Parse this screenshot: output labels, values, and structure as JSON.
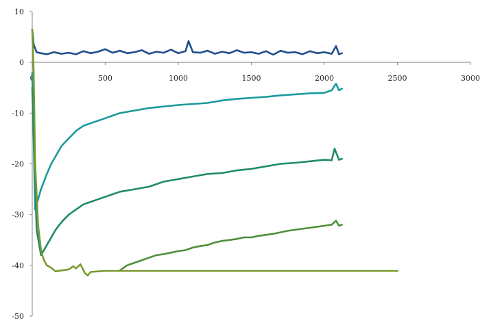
{
  "chart_data": {
    "type": "line",
    "title": "",
    "xlabel": "",
    "ylabel": "",
    "xlim": [
      0,
      3000
    ],
    "ylim": [
      -50,
      10
    ],
    "x_ticks": [
      0,
      500,
      1000,
      1500,
      2000,
      2500,
      3000
    ],
    "y_ticks": [
      10,
      0,
      -10,
      -20,
      -30,
      -40,
      -50
    ],
    "grid": false,
    "legend": "none",
    "series": [
      {
        "color": "#1f4e8c",
        "x": [
          0,
          10,
          30,
          60,
          100,
          150,
          200,
          250,
          300,
          350,
          400,
          450,
          500,
          550,
          600,
          650,
          700,
          750,
          800,
          850,
          900,
          950,
          1000,
          1050,
          1070,
          1100,
          1150,
          1200,
          1250,
          1300,
          1350,
          1400,
          1450,
          1500,
          1550,
          1600,
          1650,
          1700,
          1750,
          1800,
          1850,
          1900,
          1950,
          2000,
          2050,
          2080,
          2100,
          2120
        ],
        "y": [
          6.5,
          3.5,
          2.0,
          1.8,
          1.6,
          2.0,
          1.7,
          1.9,
          1.6,
          2.2,
          1.8,
          2.1,
          2.6,
          1.9,
          2.3,
          1.8,
          2.0,
          2.4,
          1.7,
          2.1,
          1.9,
          2.5,
          1.8,
          2.2,
          4.2,
          2.0,
          1.9,
          2.3,
          1.7,
          2.1,
          1.8,
          2.4,
          1.9,
          2.0,
          1.7,
          2.2,
          1.5,
          2.3,
          1.9,
          2.0,
          1.6,
          2.2,
          1.8,
          2.0,
          1.7,
          3.2,
          1.6,
          1.8
        ]
      },
      {
        "color": "#1a9a9c",
        "x": [
          0,
          20,
          40,
          60,
          80,
          100,
          130,
          160,
          200,
          250,
          300,
          350,
          400,
          450,
          500,
          550,
          600,
          700,
          800,
          900,
          1000,
          1100,
          1200,
          1300,
          1400,
          1500,
          1600,
          1700,
          1800,
          1900,
          2000,
          2050,
          2080,
          2100,
          2120
        ],
        "y": [
          -2,
          -29,
          -27,
          -25,
          -23.5,
          -22,
          -20,
          -18.5,
          -16.5,
          -15,
          -13.5,
          -12.5,
          -12,
          -11.5,
          -11,
          -10.5,
          -10,
          -9.5,
          -9,
          -8.7,
          -8.4,
          -8.2,
          -8,
          -7.5,
          -7.2,
          -7,
          -6.8,
          -6.5,
          -6.3,
          -6.1,
          -6,
          -5.5,
          -4.2,
          -5.5,
          -5.2
        ]
      },
      {
        "color": "#1f8a6e",
        "x": [
          0,
          30,
          60,
          90,
          120,
          160,
          200,
          250,
          300,
          350,
          400,
          450,
          500,
          550,
          600,
          700,
          800,
          900,
          1000,
          1100,
          1200,
          1300,
          1400,
          1500,
          1600,
          1700,
          1800,
          1900,
          2000,
          2050,
          2070,
          2100,
          2120
        ],
        "y": [
          -5,
          -33,
          -38,
          -36.5,
          -35,
          -33,
          -31.5,
          -30,
          -29,
          -28,
          -27.5,
          -27,
          -26.5,
          -26,
          -25.5,
          -25,
          -24.5,
          -23.5,
          -23,
          -22.5,
          -22,
          -21.8,
          -21.3,
          -21,
          -20.5,
          -20,
          -19.8,
          -19.5,
          -19.2,
          -19.3,
          -17,
          -19.2,
          -19
        ]
      },
      {
        "color": "#4e8f3a",
        "x": [
          600,
          650,
          700,
          750,
          800,
          850,
          900,
          950,
          1000,
          1050,
          1100,
          1150,
          1200,
          1250,
          1300,
          1350,
          1400,
          1450,
          1500,
          1550,
          1600,
          1650,
          1700,
          1750,
          1800,
          1850,
          1900,
          1950,
          2000,
          2050,
          2080,
          2100,
          2120
        ],
        "y": [
          -41,
          -40,
          -39.5,
          -39,
          -38.5,
          -38,
          -37.8,
          -37.5,
          -37.2,
          -37,
          -36.5,
          -36.2,
          -36,
          -35.5,
          -35.2,
          -35,
          -34.8,
          -34.5,
          -34.5,
          -34.2,
          -34,
          -33.8,
          -33.5,
          -33.2,
          -33,
          -32.8,
          -32.6,
          -32.4,
          -32.2,
          -32,
          -31.2,
          -32.2,
          -32
        ]
      },
      {
        "color": "#7a9a2e",
        "x": [
          0,
          10,
          20,
          40,
          60,
          80,
          100,
          130,
          160,
          200,
          250,
          280,
          300,
          330,
          360,
          380,
          400,
          450,
          500,
          600,
          800,
          1000,
          1500,
          2000,
          2500
        ],
        "y": [
          6.5,
          -2,
          -20,
          -32,
          -37,
          -39,
          -40,
          -40.5,
          -41.2,
          -41,
          -40.8,
          -40.2,
          -40.6,
          -39.8,
          -41.5,
          -42,
          -41.3,
          -41.2,
          -41.1,
          -41.1,
          -41.1,
          -41.1,
          -41.1,
          -41.1,
          -41.1
        ]
      }
    ]
  }
}
